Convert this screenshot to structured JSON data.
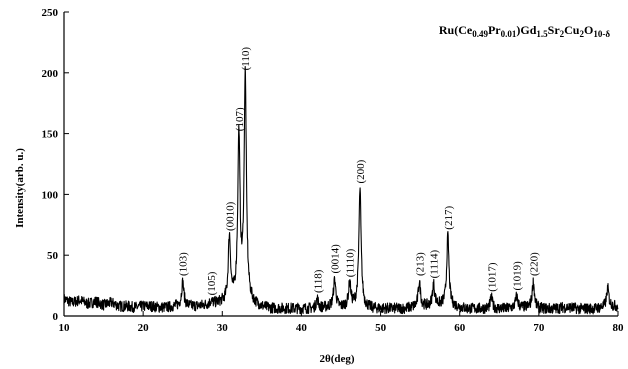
{
  "chart_data": {
    "type": "line",
    "title_parts": [
      {
        "text": "Ru(Ce",
        "sub": false
      },
      {
        "text": "0.49",
        "sub": true
      },
      {
        "text": "Pr",
        "sub": false
      },
      {
        "text": "0.01",
        "sub": true
      },
      {
        "text": ")Gd",
        "sub": false
      },
      {
        "text": "1.5",
        "sub": true
      },
      {
        "text": "Sr",
        "sub": false
      },
      {
        "text": "2",
        "sub": true
      },
      {
        "text": "Cu",
        "sub": false
      },
      {
        "text": "2",
        "sub": true
      },
      {
        "text": "O",
        "sub": false
      },
      {
        "text": "10-δ",
        "sub": true
      }
    ],
    "xlabel": "2θ(deg)",
    "ylabel": "Intensity(arb. u.)",
    "xlim": [
      10,
      80
    ],
    "ylim": [
      0,
      250
    ],
    "xticks": [
      10,
      20,
      30,
      40,
      50,
      60,
      70,
      80
    ],
    "yticks": [
      0,
      50,
      100,
      150,
      200,
      250
    ],
    "grid": false,
    "line_color": "#000000",
    "baseline": [
      [
        10,
        14
      ],
      [
        11,
        11
      ],
      [
        12,
        13
      ],
      [
        13,
        10
      ],
      [
        14,
        12
      ],
      [
        15,
        9
      ],
      [
        16,
        11
      ],
      [
        17,
        8
      ],
      [
        18,
        8
      ],
      [
        19,
        7
      ],
      [
        20,
        8
      ],
      [
        21,
        8
      ],
      [
        22,
        7
      ],
      [
        23,
        7
      ],
      [
        24,
        8
      ],
      [
        25,
        9
      ],
      [
        26,
        8
      ],
      [
        27,
        8
      ],
      [
        28,
        9
      ],
      [
        29,
        10
      ],
      [
        30,
        11
      ],
      [
        31,
        12
      ],
      [
        32,
        12
      ],
      [
        33,
        12
      ],
      [
        34,
        9
      ],
      [
        35,
        7
      ],
      [
        36,
        6
      ],
      [
        37,
        6
      ],
      [
        38,
        6
      ],
      [
        39,
        6
      ],
      [
        40,
        6
      ],
      [
        41,
        6
      ],
      [
        42,
        6
      ],
      [
        43,
        7
      ],
      [
        44,
        8
      ],
      [
        45,
        7
      ],
      [
        46,
        8
      ],
      [
        47,
        8
      ],
      [
        48,
        7
      ],
      [
        49,
        6
      ],
      [
        50,
        6
      ],
      [
        51,
        6
      ],
      [
        52,
        6
      ],
      [
        53,
        6
      ],
      [
        54,
        7
      ],
      [
        55,
        8
      ],
      [
        56,
        8
      ],
      [
        57,
        9
      ],
      [
        58,
        9
      ],
      [
        59,
        8
      ],
      [
        60,
        7
      ],
      [
        61,
        6
      ],
      [
        62,
        6
      ],
      [
        63,
        6
      ],
      [
        64,
        6
      ],
      [
        65,
        6
      ],
      [
        66,
        6
      ],
      [
        67,
        7
      ],
      [
        68,
        7
      ],
      [
        69,
        7
      ],
      [
        70,
        6
      ],
      [
        71,
        6
      ],
      [
        72,
        6
      ],
      [
        73,
        7
      ],
      [
        74,
        7
      ],
      [
        75,
        6
      ],
      [
        76,
        6
      ],
      [
        77,
        6
      ],
      [
        78,
        7
      ],
      [
        79,
        8
      ],
      [
        80,
        8
      ]
    ],
    "peaks": [
      {
        "x": 25.0,
        "y": 28,
        "label": "(103)"
      },
      {
        "x": 28.6,
        "y": 12,
        "label": "(105)"
      },
      {
        "x": 30.9,
        "y": 65,
        "label": "(0010)"
      },
      {
        "x": 32.1,
        "y": 147,
        "label": "(107)"
      },
      {
        "x": 32.9,
        "y": 197,
        "label": "(110)"
      },
      {
        "x": 42.0,
        "y": 14,
        "label": "(118)"
      },
      {
        "x": 44.2,
        "y": 30,
        "label": "(0014)"
      },
      {
        "x": 46.1,
        "y": 27,
        "label": "(1110)"
      },
      {
        "x": 47.4,
        "y": 104,
        "label": "(200)"
      },
      {
        "x": 54.9,
        "y": 28,
        "label": "(213)"
      },
      {
        "x": 56.7,
        "y": 26,
        "label": "(1114)"
      },
      {
        "x": 58.5,
        "y": 66,
        "label": "(217)"
      },
      {
        "x": 64.0,
        "y": 15,
        "label": "(1017)"
      },
      {
        "x": 67.2,
        "y": 16,
        "label": "(1019)"
      },
      {
        "x": 69.3,
        "y": 28,
        "label": "(220)"
      },
      {
        "x": 78.7,
        "y": 23,
        "label": ""
      }
    ]
  }
}
